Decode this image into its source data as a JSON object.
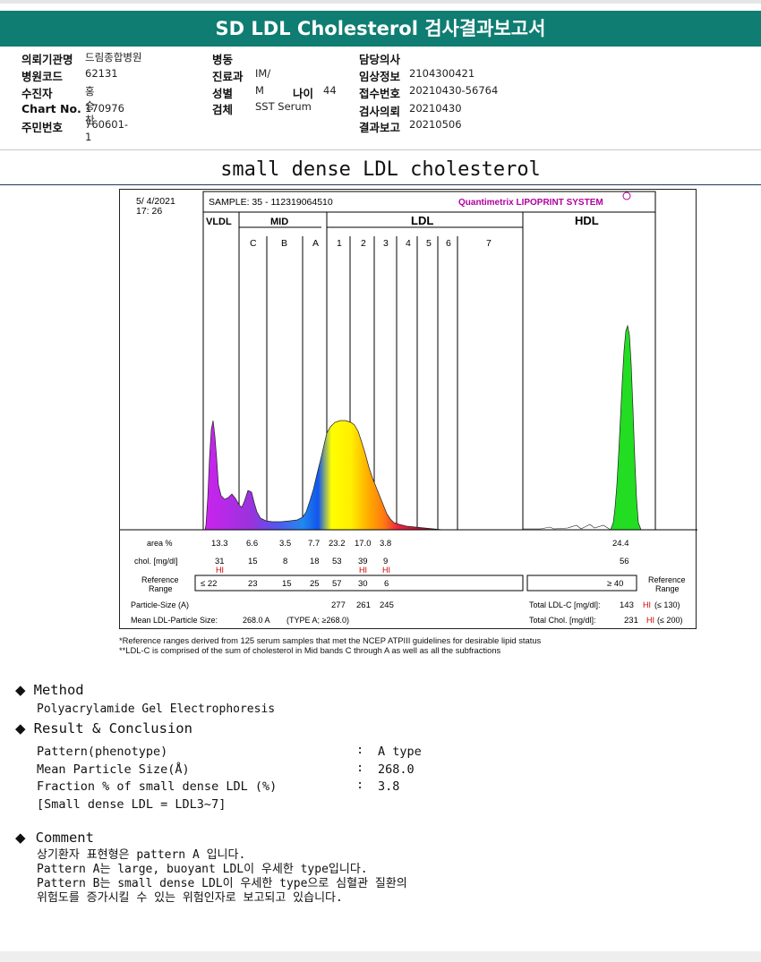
{
  "header": {
    "title": "SD LDL Cholesterol 검사결과보고서"
  },
  "info": {
    "col1": [
      {
        "label": "의뢰기관명",
        "value": "드림종합병원"
      },
      {
        "label": "병원코드",
        "value": "62131"
      },
      {
        "label": "수진자",
        "value": "홍승찬"
      },
      {
        "label": "Chart No.",
        "value": "170976"
      },
      {
        "label": "주민번호",
        "value": "760601-1"
      }
    ],
    "col2": [
      {
        "label": "병동",
        "value": ""
      },
      {
        "label": "진료과",
        "value": "IM/"
      },
      {
        "label": "성별",
        "value": "M"
      },
      {
        "label": "검체",
        "value": "SST Serum"
      }
    ],
    "age": {
      "label": "나이",
      "value": "44"
    },
    "col3": [
      {
        "label": "담당의사",
        "value": ""
      },
      {
        "label": "임상정보",
        "value": "2104300421"
      },
      {
        "label": "접수번호",
        "value": "20210430-56764"
      },
      {
        "label": "검사의뢰",
        "value": "20210430"
      },
      {
        "label": "결과보고",
        "value": "20210506"
      }
    ]
  },
  "section_title": "small dense LDL cholesterol",
  "report": {
    "date": "5/ 4/2021",
    "time": "17: 26",
    "sample": "SAMPLE:   35 - 112319064510",
    "brand": "Quantimetrix LIPOPRINT SYSTEM",
    "groups": [
      "VLDL",
      "MID",
      "LDL",
      "HDL"
    ],
    "bands": [
      "C",
      "B",
      "A",
      "1",
      "2",
      "3",
      "4",
      "5",
      "6",
      "7"
    ],
    "row_labels": {
      "area": "area %",
      "chol": "chol. [mg/dl]",
      "ref1": "Reference",
      "ref2": "Range",
      "ref_right1": "Reference",
      "ref_right2": "Range",
      "particle": "Particle-Size (A)",
      "mean": "Mean LDL-Particle Size:",
      "mean_val": "268.0 A",
      "type": "(TYPE A; ≥268.0)",
      "total_ldl": "Total LDL-C [mg/dl]:",
      "total_ldl_val": "143",
      "total_ldl_ref": "(≤ 130)",
      "total_chol": "Total Chol. [mg/dl]:",
      "total_chol_val": "231",
      "total_chol_ref": "(≤ 200)",
      "hi": "HI"
    },
    "area": [
      "13.3",
      "6.6",
      "3.5",
      "7.7",
      "23.2",
      "17.0",
      "3.8",
      "24.4"
    ],
    "chol": [
      "31",
      "15",
      "8",
      "18",
      "53",
      "39",
      "9",
      "56"
    ],
    "ref": [
      "≤ 22",
      "23",
      "15",
      "25",
      "57",
      "30",
      "6",
      "≥ 40"
    ],
    "particle": [
      "277",
      "261",
      "245"
    ],
    "footnote1": "*Reference ranges derived from 125 serum samples that met the NCEP ATPIII guidelines for desirable lipid status",
    "footnote2": "**LDL-C is comprised of the sum of cholesterol in Mid bands C through A as well as all the subfractions"
  },
  "method": {
    "heading": "Method",
    "text": "Polyacrylamide Gel Electrophoresis"
  },
  "result": {
    "heading": "Result & Conclusion",
    "rows": [
      {
        "label": "Pattern(phenotype)",
        "sep": ":",
        "value": "A type"
      },
      {
        "label": "Mean Particle Size(Å)",
        "sep": ":",
        "value": "268.0"
      },
      {
        "label": "Fraction % of small dense LDL (%)",
        "sep": ":",
        "value": "3.8"
      }
    ],
    "note": "[Small dense LDL = LDL3~7]"
  },
  "comment": {
    "heading": "Comment",
    "lines": [
      "상기환자 표현형은 pattern A 입니다.",
      "Pattern A는 large, buoyant LDL이 우세한 type입니다.",
      "Pattern B는 small dense LDL이 우세한 type으로 심혈관 질환의",
      "위험도를 증가시킬 수 있는 위험인자로 보고되고 있습니다."
    ]
  },
  "colors": {
    "header_bg": "#0f7d72",
    "hi_red": "#cc0000",
    "brand": "#b000a0"
  }
}
